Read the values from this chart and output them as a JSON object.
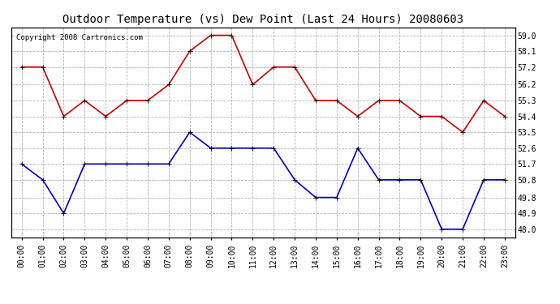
{
  "title": "Outdoor Temperature (vs) Dew Point (Last 24 Hours) 20080603",
  "copyright": "Copyright 2008 Cartronics.com",
  "hours": [
    "00:00",
    "01:00",
    "02:00",
    "03:00",
    "04:00",
    "05:00",
    "06:00",
    "07:00",
    "08:00",
    "09:00",
    "10:00",
    "11:00",
    "12:00",
    "13:00",
    "14:00",
    "15:00",
    "16:00",
    "17:00",
    "18:00",
    "19:00",
    "20:00",
    "21:00",
    "22:00",
    "23:00"
  ],
  "temp": [
    57.2,
    57.2,
    54.4,
    55.3,
    54.4,
    55.3,
    55.3,
    56.2,
    58.1,
    59.0,
    59.0,
    56.2,
    57.2,
    57.2,
    55.3,
    55.3,
    54.4,
    55.3,
    55.3,
    54.4,
    54.4,
    53.5,
    55.3,
    54.4
  ],
  "dew": [
    51.7,
    50.8,
    48.9,
    51.7,
    51.7,
    51.7,
    51.7,
    51.7,
    53.5,
    52.6,
    52.6,
    52.6,
    52.6,
    50.8,
    49.8,
    49.8,
    52.6,
    50.8,
    50.8,
    50.8,
    48.0,
    48.0,
    50.8,
    50.8
  ],
  "temp_color": "#cc0000",
  "dew_color": "#0000cc",
  "bg_color": "#ffffff",
  "grid_color": "#aaaaaa",
  "ylim_min": 47.55,
  "ylim_max": 59.45,
  "yticks": [
    48.0,
    48.9,
    49.8,
    50.8,
    51.7,
    52.6,
    53.5,
    54.4,
    55.3,
    56.2,
    57.2,
    58.1,
    59.0
  ],
  "title_fontsize": 10,
  "copyright_fontsize": 6.5,
  "tick_fontsize": 7,
  "marker": "+",
  "markersize": 5,
  "linewidth": 1.2
}
